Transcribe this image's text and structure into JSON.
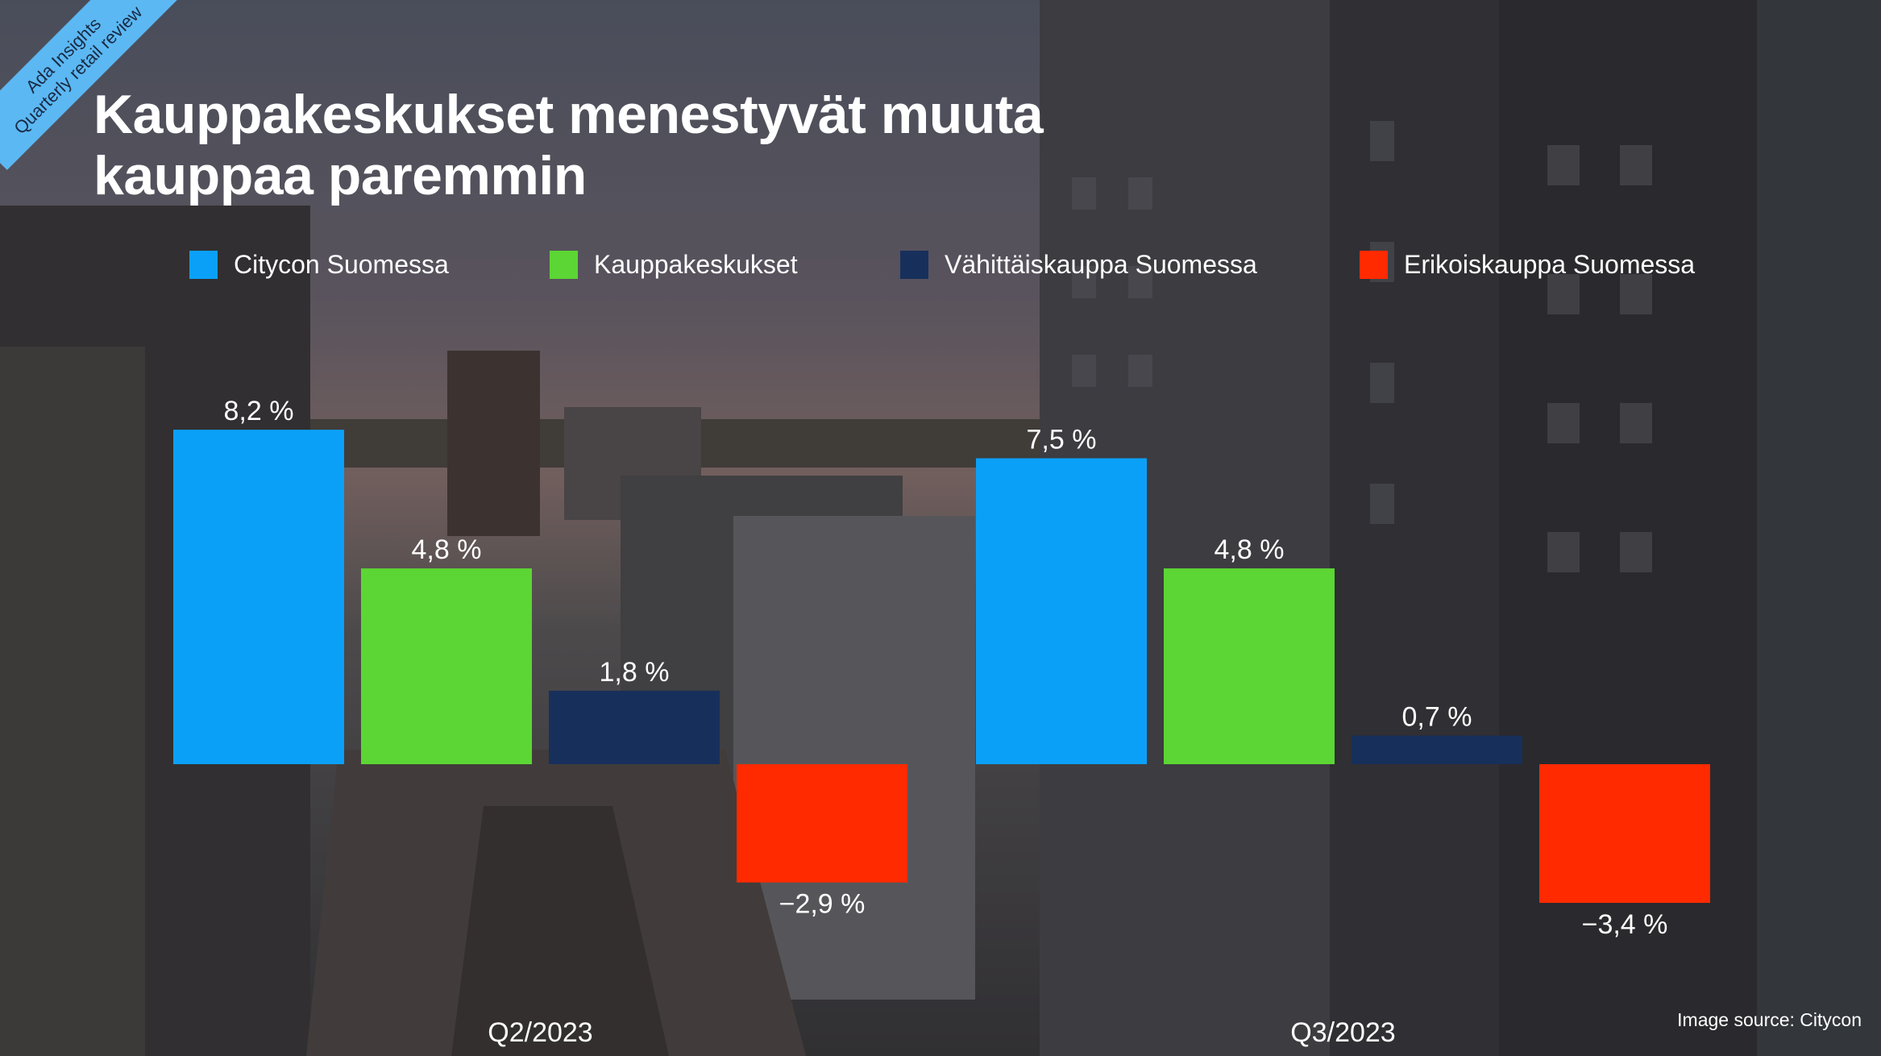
{
  "corner_ribbon": {
    "line1": "Ada Insights",
    "line2": "Quarterly retail review"
  },
  "title_line1": "Kauppakeskukset menestyvät muuta",
  "title_line2": "kauppaa paremmin",
  "image_source": "Image source: Citycon",
  "colors": {
    "citycon": "#0ba0f8",
    "kauppakeskukset": "#5cd634",
    "vahittais": "#17305b",
    "erikois": "#ff2a00"
  },
  "chart_data": {
    "type": "bar",
    "title": "Kauppakeskukset menestyvät muuta kauppaa paremmin",
    "categories": [
      "Q2/2023",
      "Q3/2023"
    ],
    "series": [
      {
        "name": "Citycon Suomessa",
        "values": [
          8.2,
          7.5
        ],
        "labels": [
          "8,2 %",
          "7,5 %"
        ],
        "color": "#0ba0f8"
      },
      {
        "name": "Kauppakeskukset",
        "values": [
          4.8,
          4.8
        ],
        "labels": [
          "4,8 %",
          "4,8 %"
        ],
        "color": "#5cd634"
      },
      {
        "name": "Vähittäiskauppa Suomessa",
        "values": [
          1.8,
          0.7
        ],
        "labels": [
          "1,8 %",
          "0,7 %"
        ],
        "color": "#17305b"
      },
      {
        "name": "Erikoiskauppa Suomessa",
        "values": [
          -2.9,
          -3.4
        ],
        "labels": [
          "−2,9 %",
          "−3,4 %"
        ],
        "color": "#ff2a00"
      }
    ],
    "xlabel": "",
    "ylabel": "",
    "legend": "top",
    "grid": false
  }
}
